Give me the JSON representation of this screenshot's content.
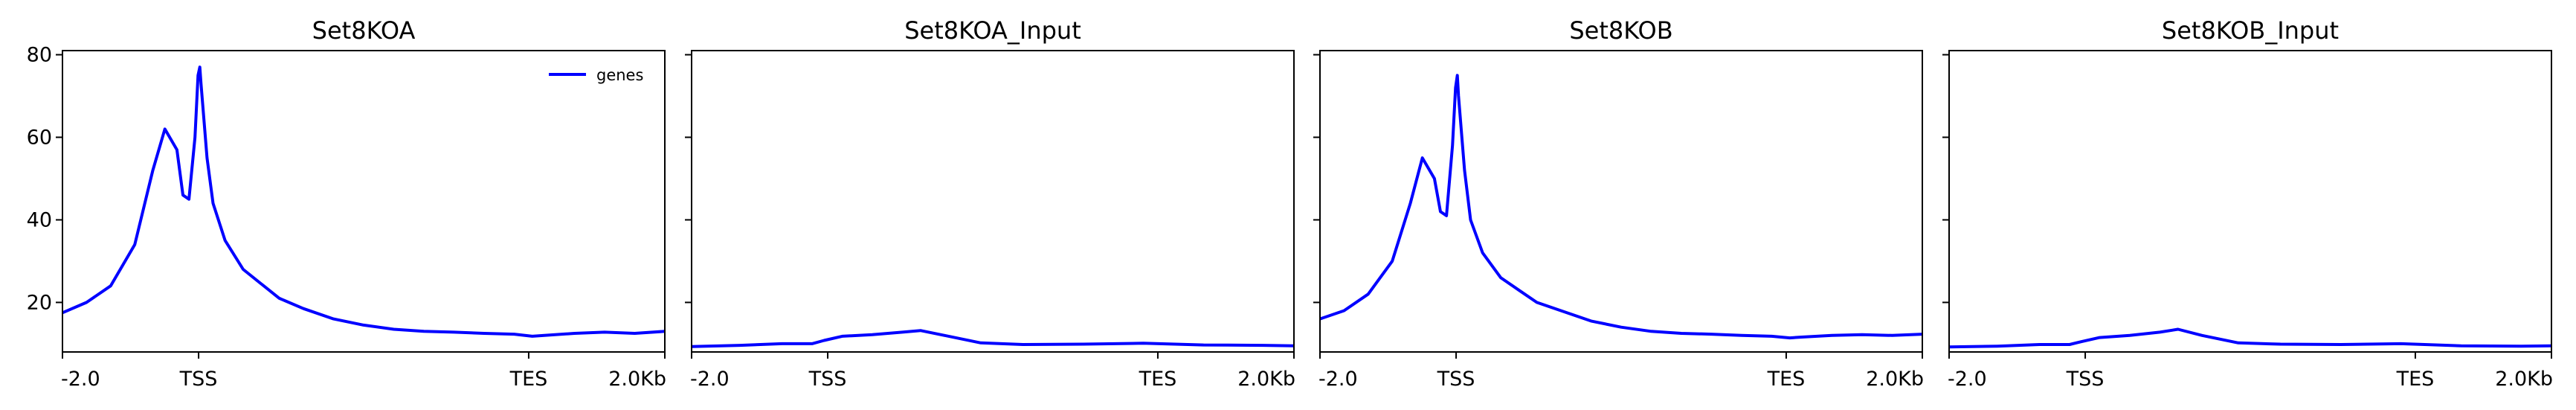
{
  "chart_data": [
    {
      "type": "line",
      "title": "Set8KOA",
      "xlabel": "",
      "ylabel": "",
      "ylim": [
        8,
        81
      ],
      "yticks": [
        20,
        40,
        60,
        80
      ],
      "xticks": [
        "-2.0",
        "TSS",
        "TES",
        "2.0Kb"
      ],
      "legend": {
        "placement": "top-right",
        "entries": [
          "genes"
        ]
      },
      "grid": false,
      "series": [
        {
          "name": "genes",
          "color": "#0000ff",
          "x": [
            0,
            0.04,
            0.08,
            0.12,
            0.15,
            0.17,
            0.19,
            0.2,
            0.21,
            0.22,
            0.225,
            0.228,
            0.23,
            0.24,
            0.25,
            0.27,
            0.3,
            0.33,
            0.36,
            0.4,
            0.45,
            0.5,
            0.55,
            0.6,
            0.65,
            0.7,
            0.75,
            0.78,
            0.8,
            0.85,
            0.9,
            0.95,
            1.0
          ],
          "y": [
            17.5,
            20,
            24,
            34,
            52,
            62,
            57,
            46,
            45,
            60,
            75,
            77,
            73,
            55,
            44,
            35,
            28,
            24.5,
            21,
            18.5,
            16,
            14.5,
            13.5,
            13,
            12.8,
            12.5,
            12.3,
            11.8,
            12,
            12.5,
            12.8,
            12.5,
            13
          ]
        }
      ]
    },
    {
      "type": "line",
      "title": "Set8KOA_Input",
      "xlabel": "",
      "ylabel": "",
      "ylim": [
        8,
        81
      ],
      "yticks": [
        20,
        40,
        60,
        80
      ],
      "xticks": [
        "-2.0",
        "TSS",
        "TES",
        "2.0Kb"
      ],
      "grid": false,
      "series": [
        {
          "color": "#0000ff",
          "x": [
            0,
            0.08,
            0.15,
            0.2,
            0.22,
            0.25,
            0.3,
            0.35,
            0.38,
            0.42,
            0.48,
            0.55,
            0.65,
            0.75,
            0.85,
            0.95,
            1.0
          ],
          "y": [
            9.3,
            9.6,
            10,
            10,
            10.8,
            11.8,
            12.2,
            12.8,
            13.2,
            12,
            10.2,
            9.8,
            9.9,
            10.1,
            9.7,
            9.6,
            9.5
          ]
        }
      ]
    },
    {
      "type": "line",
      "title": "Set8KOB",
      "xlabel": "",
      "ylabel": "",
      "ylim": [
        8,
        81
      ],
      "yticks": [
        20,
        40,
        60,
        80
      ],
      "xticks": [
        "-2.0",
        "TSS",
        "TES",
        "2.0Kb"
      ],
      "grid": false,
      "series": [
        {
          "color": "#0000ff",
          "x": [
            0,
            0.04,
            0.08,
            0.12,
            0.15,
            0.17,
            0.19,
            0.2,
            0.21,
            0.22,
            0.225,
            0.228,
            0.23,
            0.24,
            0.25,
            0.27,
            0.3,
            0.33,
            0.36,
            0.4,
            0.45,
            0.5,
            0.55,
            0.6,
            0.65,
            0.7,
            0.75,
            0.78,
            0.8,
            0.85,
            0.9,
            0.95,
            1.0
          ],
          "y": [
            16,
            18,
            22,
            30,
            44,
            55,
            50,
            42,
            41,
            58,
            72,
            75,
            70,
            52,
            40,
            32,
            26,
            23,
            20,
            18,
            15.5,
            14,
            13,
            12.5,
            12.3,
            12,
            11.8,
            11.4,
            11.6,
            12,
            12.2,
            12,
            12.3
          ]
        }
      ]
    },
    {
      "type": "line",
      "title": "Set8KOB_Input",
      "xlabel": "",
      "ylabel": "",
      "ylim": [
        8,
        81
      ],
      "yticks": [
        20,
        40,
        60,
        80
      ],
      "xticks": [
        "-2.0",
        "TSS",
        "TES",
        "2.0Kb"
      ],
      "grid": false,
      "series": [
        {
          "color": "#0000ff",
          "x": [
            0,
            0.08,
            0.15,
            0.2,
            0.22,
            0.25,
            0.3,
            0.35,
            0.38,
            0.42,
            0.48,
            0.55,
            0.65,
            0.75,
            0.85,
            0.95,
            1.0
          ],
          "y": [
            9.2,
            9.4,
            9.8,
            9.8,
            10.5,
            11.5,
            12,
            12.8,
            13.5,
            12,
            10.2,
            9.9,
            9.8,
            10,
            9.5,
            9.4,
            9.5
          ]
        }
      ]
    }
  ]
}
